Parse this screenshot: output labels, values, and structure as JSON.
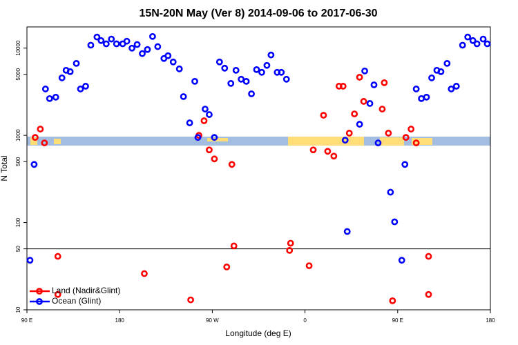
{
  "chart_data": {
    "type": "scatter",
    "title": "15N-20N May (Ver 8)   2014-09-06 to 2017-06-30",
    "x_label": "Longitude (deg E)",
    "y_label": "N Total",
    "log_y": true,
    "xlim": [
      90,
      540
    ],
    "ylim": [
      10,
      17500
    ],
    "xticks": [
      {
        "value": 90,
        "label": "90 E"
      },
      {
        "value": 180,
        "label": "180"
      },
      {
        "value": 270,
        "label": "90 W"
      },
      {
        "value": 360,
        "label": "0"
      },
      {
        "value": 450,
        "label": "90 E"
      },
      {
        "value": 540,
        "label": "180"
      }
    ],
    "yticks": [
      10,
      50,
      100,
      500,
      1000,
      5000,
      10000
    ],
    "legend": "lower left",
    "series": [
      {
        "name": "Land (Nadir&Glint)",
        "color": "#ff0000",
        "x": [
          98,
          103,
          107,
          120,
          120,
          204,
          249,
          257,
          262,
          267,
          272,
          284,
          289,
          291,
          345,
          346,
          364,
          368,
          378,
          382,
          388,
          393,
          397,
          403,
          408,
          413,
          417,
          435,
          437,
          441,
          445,
          458,
          463,
          468,
          480,
          480
        ],
        "values": [
          946,
          1180,
          818,
          41,
          15,
          26,
          13,
          1000,
          1470,
          681,
          537,
          31,
          464,
          54,
          48,
          58,
          32,
          681,
          1700,
          656,
          578,
          3660,
          3660,
          1060,
          1760,
          4640,
          2450,
          2000,
          4010,
          1060,
          12.7,
          946,
          1180,
          818,
          41,
          15
        ]
      },
      {
        "name": "Ocean (Glint)",
        "color": "#0000ff",
        "x": [
          93,
          97,
          108,
          112,
          118,
          124,
          128,
          132,
          138,
          142,
          147,
          152,
          158,
          162,
          167,
          172,
          177,
          183,
          187,
          192,
          197,
          202,
          207,
          212,
          217,
          223,
          227,
          232,
          238,
          242,
          248,
          253,
          256,
          263,
          267,
          272,
          277,
          282,
          288,
          293,
          298,
          303,
          308,
          313,
          318,
          323,
          327,
          333,
          337,
          342,
          399,
          401,
          413,
          418,
          423,
          427,
          431,
          443,
          447,
          454,
          457,
          468,
          473,
          478,
          483,
          488,
          492,
          498,
          502,
          507,
          513,
          518,
          523,
          527,
          533,
          537
        ],
        "values": [
          37,
          464,
          3400,
          2640,
          2740,
          4560,
          5570,
          5370,
          6680,
          3400,
          3660,
          10800,
          13400,
          12200,
          11200,
          12700,
          11200,
          11200,
          12000,
          10000,
          11000,
          8650,
          9640,
          13600,
          10400,
          7600,
          8180,
          6940,
          5780,
          2780,
          1390,
          4160,
          946,
          2000,
          1730,
          946,
          6940,
          5890,
          3940,
          5570,
          4400,
          4160,
          2990,
          5670,
          5280,
          6340,
          8340,
          5280,
          5280,
          4400,
          880,
          79,
          1340,
          5470,
          2320,
          3790,
          818,
          223,
          102,
          37,
          464,
          3400,
          2640,
          2740,
          4560,
          5570,
          5370,
          6680,
          3400,
          3660,
          10800,
          13400,
          12200,
          11200,
          12700,
          11200
        ]
      }
    ]
  }
}
